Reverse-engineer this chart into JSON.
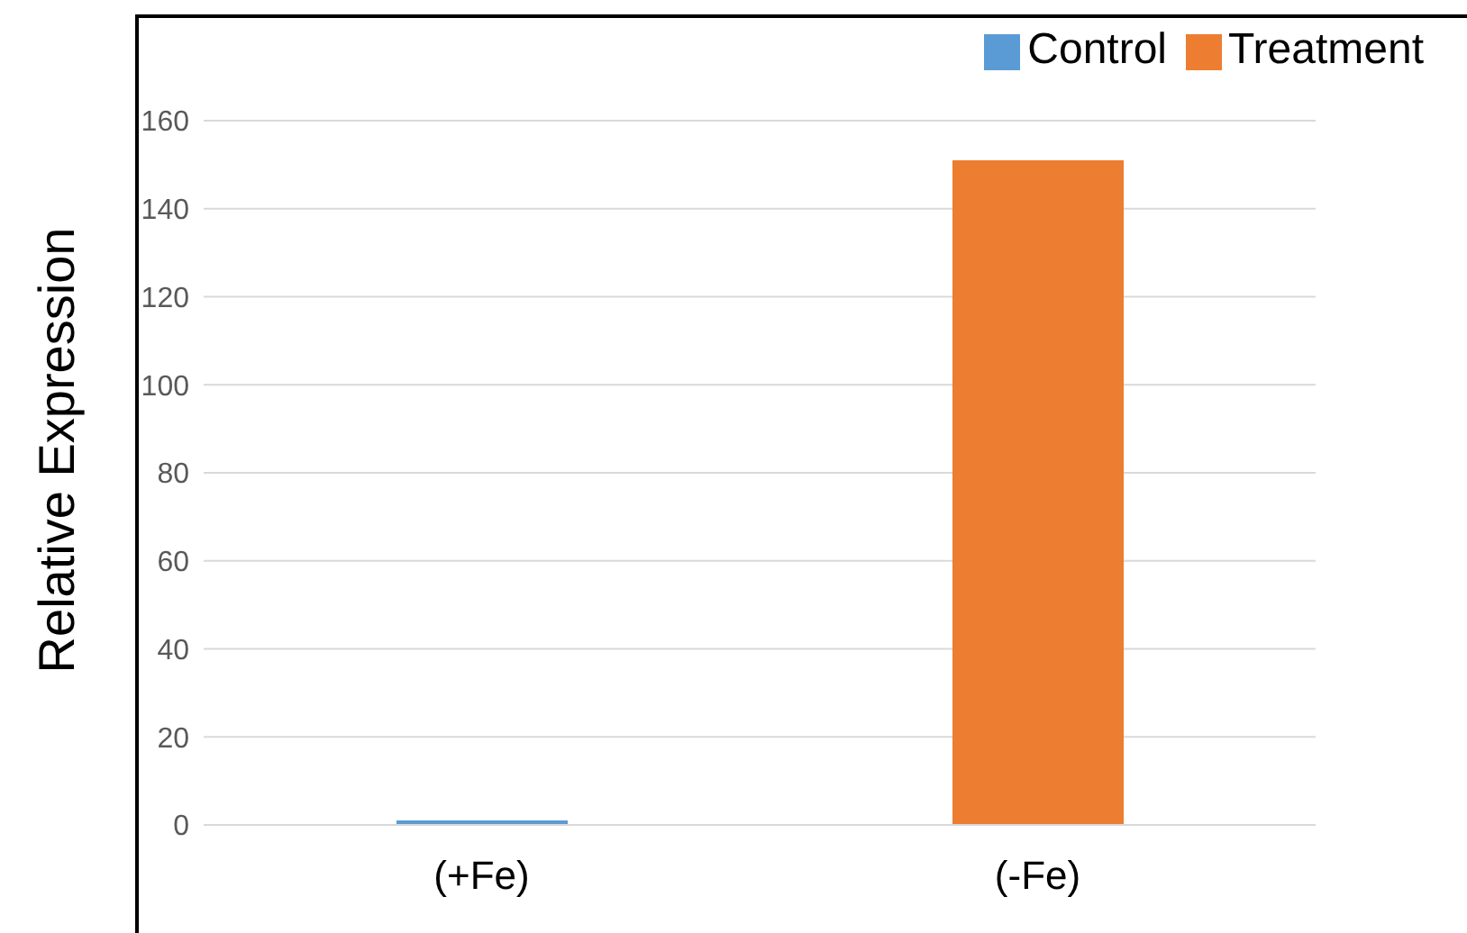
{
  "chart_data": {
    "type": "bar",
    "ylabel": "Relative Expression",
    "categories": [
      "(+Fe)",
      "(-Fe)"
    ],
    "stacked": true,
    "series": [
      {
        "name": "Control",
        "color": "#5b9bd5",
        "values": [
          1,
          null
        ]
      },
      {
        "name": "Treatment",
        "color": "#ed7d31",
        "values": [
          null,
          151
        ]
      }
    ],
    "ylim": [
      0,
      160
    ],
    "yticks": [
      0,
      20,
      40,
      60,
      80,
      100,
      120,
      140,
      160
    ],
    "grid": "y",
    "legend": "top right"
  }
}
